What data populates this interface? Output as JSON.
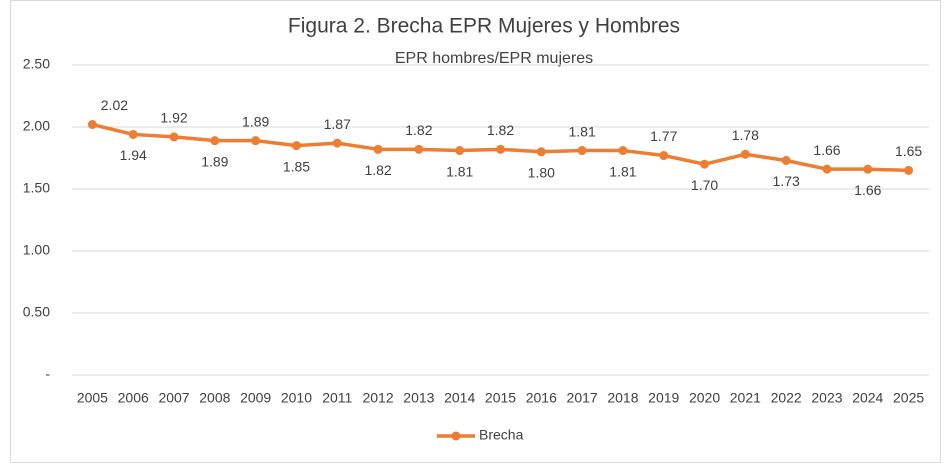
{
  "chart_data": {
    "type": "line",
    "title": "Figura 2. Brecha EPR Mujeres y Hombres",
    "subtitle": "EPR hombres/EPR mujeres",
    "categories": [
      "2005",
      "2006",
      "2007",
      "2008",
      "2009",
      "2010",
      "2011",
      "2012",
      "2013",
      "2014",
      "2015",
      "2016",
      "2017",
      "2018",
      "2019",
      "2020",
      "2021",
      "2022",
      "2023",
      "2024",
      "2025"
    ],
    "series": [
      {
        "name": "Brecha",
        "color": "#ed7d31",
        "values": [
          2.02,
          1.94,
          1.92,
          1.89,
          1.89,
          1.85,
          1.87,
          1.82,
          1.82,
          1.81,
          1.82,
          1.8,
          1.81,
          1.81,
          1.77,
          1.7,
          1.78,
          1.73,
          1.66,
          1.66,
          1.65
        ],
        "value_labels": [
          "2.02",
          "1.94",
          "1.92",
          "1.89",
          "1.89",
          "1.85",
          "1.87",
          "1.82",
          "1.82",
          "1.81",
          "1.82",
          "1.80",
          "1.81",
          "1.81",
          "1.77",
          "1.70",
          "1.78",
          "1.73",
          "1.66",
          "1.66",
          "1.65"
        ]
      }
    ],
    "ylim": [
      0,
      2.5
    ],
    "yticks": [
      {
        "value": 0,
        "label": "-"
      },
      {
        "value": 0.5,
        "label": "0.50"
      },
      {
        "value": 1,
        "label": "1.00"
      },
      {
        "value": 1.5,
        "label": "1.50"
      },
      {
        "value": 2,
        "label": "2.00"
      },
      {
        "value": 2.5,
        "label": "2.50"
      }
    ],
    "grid": true,
    "legend": "bottom"
  }
}
